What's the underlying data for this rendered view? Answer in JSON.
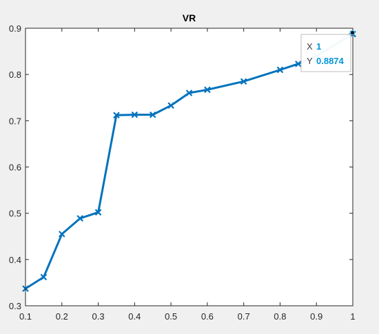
{
  "chart_data": {
    "type": "line",
    "title": "VR",
    "xlabel": "",
    "ylabel": "",
    "xlim": [
      0.1,
      1
    ],
    "ylim": [
      0.3,
      0.9
    ],
    "xticks": [
      0.1,
      0.2,
      0.3,
      0.4,
      0.5,
      0.6,
      0.7,
      0.8,
      0.9,
      1
    ],
    "xtick_labels": [
      "0.1",
      "0.2",
      "0.3",
      "0.4",
      "0.5",
      "0.6",
      "0.7",
      "0.8",
      "0.9",
      "1"
    ],
    "yticks": [
      0.3,
      0.4,
      0.5,
      0.6,
      0.7,
      0.8,
      0.9
    ],
    "ytick_labels": [
      "0.3",
      "0.4",
      "0.5",
      "0.6",
      "0.7",
      "0.8",
      "0.9"
    ],
    "grid": false,
    "line_color": "#0072bd",
    "marker": "x",
    "series": [
      {
        "x": [
          0.1,
          0.15,
          0.2,
          0.25,
          0.3,
          0.35,
          0.4,
          0.45,
          0.5,
          0.55,
          0.6,
          0.7,
          0.8,
          0.85,
          0.9,
          1
        ],
        "values": [
          0.337,
          0.362,
          0.455,
          0.489,
          0.502,
          0.712,
          0.713,
          0.713,
          0.733,
          0.76,
          0.767,
          0.785,
          0.81,
          0.823,
          0.84,
          0.8874
        ]
      }
    ]
  },
  "datatip": {
    "x_label": "X",
    "x_value": "1",
    "y_label": "Y",
    "y_value": "0.8874",
    "value_color": "#0096dc"
  }
}
